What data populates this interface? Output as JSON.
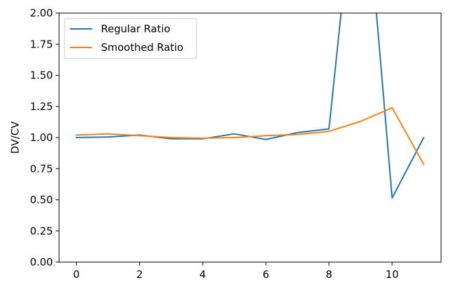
{
  "chart_data": {
    "type": "line",
    "title": "",
    "xlabel": "",
    "ylabel": "DV/CV",
    "xlim": [
      -0.55,
      11.55
    ],
    "ylim": [
      0.0,
      2.0
    ],
    "xticks": [
      0,
      2,
      4,
      6,
      8,
      10
    ],
    "yticks": [
      0.0,
      0.25,
      0.5,
      0.75,
      1.0,
      1.25,
      1.5,
      1.75,
      2.0
    ],
    "xtick_labels": [
      "0",
      "2",
      "4",
      "6",
      "8",
      "10"
    ],
    "ytick_labels": [
      "0.00",
      "0.25",
      "0.50",
      "0.75",
      "1.00",
      "1.25",
      "1.50",
      "1.75",
      "2.00"
    ],
    "grid": false,
    "legend_position": "top-left",
    "series": [
      {
        "name": "Regular Ratio",
        "color": "#1f77b4",
        "x": [
          0,
          1,
          2,
          3,
          4,
          5,
          6,
          7,
          8,
          9,
          10,
          11
        ],
        "values": [
          1.0,
          1.005,
          1.02,
          0.99,
          0.99,
          1.03,
          0.985,
          1.04,
          1.07,
          3.5,
          0.515,
          1.0
        ]
      },
      {
        "name": "Smoothed Ratio",
        "color": "#ff7f0e",
        "x": [
          0,
          1,
          2,
          3,
          4,
          5,
          6,
          7,
          8,
          9,
          10,
          11
        ],
        "values": [
          1.02,
          1.03,
          1.015,
          1.0,
          0.995,
          1.0,
          1.015,
          1.025,
          1.05,
          1.13,
          1.24,
          0.785
        ]
      }
    ]
  }
}
